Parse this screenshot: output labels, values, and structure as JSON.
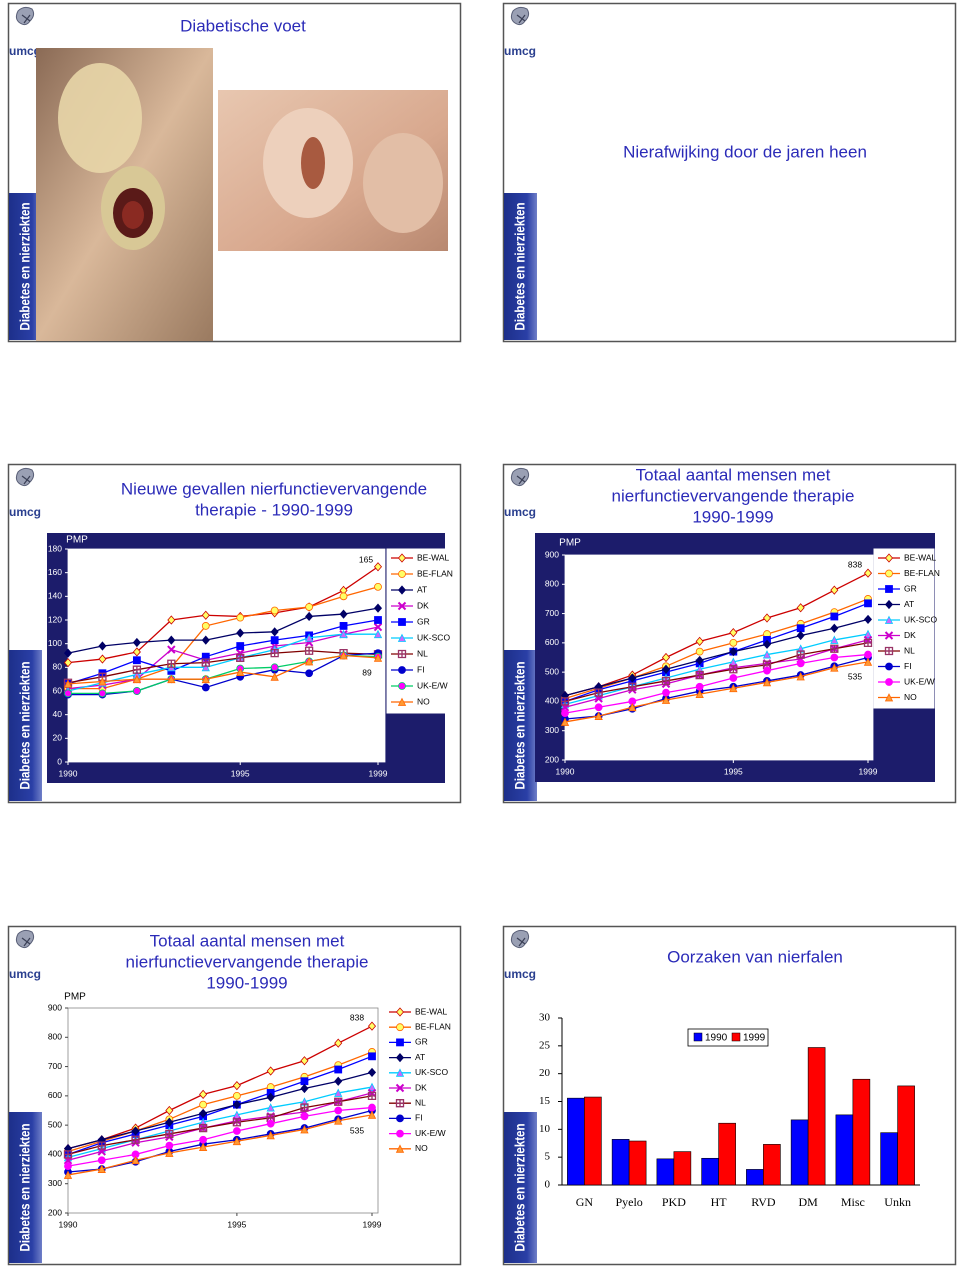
{
  "branding": {
    "logo": "umcg",
    "banner": "Diabetes en nierziekten"
  },
  "slides": [
    {
      "title": [
        "Diabetische voet"
      ]
    },
    {
      "title": [
        "Nierafwijking door de jaren heen"
      ]
    },
    {
      "title": [
        "Nieuwe gevallen nierfunctievervangende",
        "therapie - 1990-1999"
      ]
    },
    {
      "title": [
        "Totaal aantal mensen met",
        "nierfunctievervangende therapie",
        "1990-1999"
      ]
    },
    {
      "title": [
        "Totaal aantal mensen met",
        "nierfunctievervangende therapie",
        "1990-1999"
      ]
    },
    {
      "title": [
        "Oorzaken van nierfalen"
      ]
    }
  ],
  "chart_data": [
    {
      "type": "line",
      "y_label": "PMP",
      "frame_color": "#1c1c6b",
      "annotations": [
        "165",
        "89"
      ],
      "x": [
        1990,
        1991,
        1992,
        1993,
        1994,
        1995,
        1996,
        1997,
        1998,
        1999
      ],
      "xlim": [
        1990,
        1999
      ],
      "xticks": [
        1990,
        1995,
        1999
      ],
      "ylim": [
        0,
        180
      ],
      "yticks": [
        0,
        20,
        40,
        60,
        80,
        100,
        120,
        140,
        160,
        180
      ],
      "series": [
        {
          "name": "BE-WAL",
          "color": "#cc0000",
          "marker": "diamond",
          "marker_fill": "#ffff66",
          "values": [
            84,
            87,
            93,
            120,
            124,
            123,
            126,
            131,
            145,
            165
          ]
        },
        {
          "name": "BE-FLAN",
          "color": "#ff6600",
          "marker": "circle",
          "marker_fill": "#ffff66",
          "values": [
            62,
            62,
            70,
            80,
            115,
            122,
            128,
            131,
            140,
            148
          ]
        },
        {
          "name": "AT",
          "color": "#000066",
          "marker": "diamond",
          "marker_fill": "#000066",
          "values": [
            92,
            98,
            101,
            103,
            103,
            109,
            110,
            123,
            125,
            130
          ]
        },
        {
          "name": "DK",
          "color": "#cc00cc",
          "marker": "x",
          "marker_fill": "#cc00cc",
          "values": [
            62,
            65,
            70,
            95,
            86,
            92,
            98,
            101,
            108,
            114
          ]
        },
        {
          "name": "GR",
          "color": "#0000ff",
          "marker": "square",
          "marker_fill": "#0000ff",
          "values": [
            66,
            75,
            86,
            77,
            89,
            98,
            103,
            107,
            115,
            120
          ]
        },
        {
          "name": "UK-SCO",
          "color": "#00ccff",
          "marker": "triangle",
          "marker_fill": "#cc66ff",
          "values": [
            60,
            67,
            74,
            80,
            80,
            88,
            95,
            105,
            108,
            108
          ]
        },
        {
          "name": "NL",
          "color": "#800000",
          "marker": "hash",
          "marker_fill": "#993366",
          "values": [
            67,
            72,
            78,
            83,
            84,
            88,
            92,
            94,
            92,
            91
          ]
        },
        {
          "name": "FI",
          "color": "#0000cc",
          "marker": "circle",
          "marker_fill": "#0000cc",
          "values": [
            57,
            57,
            60,
            70,
            63,
            72,
            78,
            75,
            90,
            92
          ]
        },
        {
          "name": "UK-E/W",
          "color": "#00cc66",
          "marker": "circle",
          "marker_fill": "#ff00ff",
          "values": [
            58,
            58,
            60,
            70,
            70,
            79,
            80,
            85,
            90,
            89
          ]
        },
        {
          "name": "NO",
          "color": "#ff6600",
          "marker": "triangle",
          "marker_fill": "#ff9933",
          "values": [
            66,
            68,
            70,
            70,
            70,
            76,
            72,
            85,
            90,
            88
          ]
        }
      ]
    },
    {
      "type": "line",
      "y_label": "PMP",
      "frame_color": "#1c1c6b",
      "annotations": [
        "838",
        "535"
      ],
      "x": [
        1990,
        1991,
        1992,
        1993,
        1994,
        1995,
        1996,
        1997,
        1998,
        1999
      ],
      "xlim": [
        1990,
        1999
      ],
      "xticks": [
        1990,
        1995,
        1999
      ],
      "ylim": [
        200,
        900
      ],
      "yticks": [
        200,
        300,
        400,
        500,
        600,
        700,
        800,
        900
      ],
      "series": [
        {
          "name": "BE-WAL",
          "color": "#cc0000",
          "marker": "diamond",
          "marker_fill": "#ffff66",
          "values": [
            420,
            450,
            490,
            550,
            605,
            635,
            685,
            720,
            780,
            838
          ]
        },
        {
          "name": "BE-FLAN",
          "color": "#ff6600",
          "marker": "circle",
          "marker_fill": "#ffff66",
          "values": [
            410,
            445,
            480,
            520,
            570,
            600,
            630,
            665,
            705,
            750
          ]
        },
        {
          "name": "GR",
          "color": "#0000ff",
          "marker": "square",
          "marker_fill": "#0000ff",
          "values": [
            400,
            440,
            470,
            500,
            530,
            570,
            610,
            650,
            690,
            735
          ]
        },
        {
          "name": "AT",
          "color": "#000066",
          "marker": "diamond",
          "marker_fill": "#000066",
          "values": [
            420,
            450,
            480,
            510,
            540,
            570,
            595,
            625,
            650,
            680
          ]
        },
        {
          "name": "UK-SCO",
          "color": "#00ccff",
          "marker": "triangle",
          "marker_fill": "#cc66ff",
          "values": [
            390,
            420,
            450,
            480,
            510,
            535,
            560,
            580,
            610,
            630
          ]
        },
        {
          "name": "DK",
          "color": "#cc00cc",
          "marker": "x",
          "marker_fill": "#cc00cc",
          "values": [
            380,
            410,
            440,
            460,
            490,
            515,
            530,
            545,
            580,
            610
          ]
        },
        {
          "name": "NL",
          "color": "#800000",
          "marker": "hash",
          "marker_fill": "#993366",
          "values": [
            400,
            430,
            450,
            470,
            490,
            510,
            525,
            560,
            580,
            600
          ]
        },
        {
          "name": "FI",
          "color": "#0000cc",
          "marker": "circle",
          "marker_fill": "#0000cc",
          "values": [
            340,
            350,
            375,
            410,
            435,
            450,
            470,
            490,
            520,
            550
          ]
        },
        {
          "name": "UK-E/W",
          "color": "#ff00ff",
          "marker": "circle",
          "marker_fill": "#ff00ff",
          "values": [
            360,
            380,
            400,
            430,
            450,
            480,
            505,
            530,
            550,
            560
          ]
        },
        {
          "name": "NO",
          "color": "#ff6600",
          "marker": "triangle",
          "marker_fill": "#ff9933",
          "values": [
            330,
            350,
            380,
            405,
            425,
            445,
            465,
            485,
            515,
            535
          ]
        }
      ]
    },
    {
      "type": "line",
      "y_label": "PMP",
      "annotations": [
        "838",
        "535"
      ],
      "x": [
        1990,
        1991,
        1992,
        1993,
        1994,
        1995,
        1996,
        1997,
        1998,
        1999
      ],
      "xlim": [
        1990,
        1999
      ],
      "xticks": [
        1990,
        1995,
        1999
      ],
      "ylim": [
        200,
        900
      ],
      "yticks": [
        200,
        300,
        400,
        500,
        600,
        700,
        800,
        900
      ],
      "series": [
        {
          "name": "BE-WAL",
          "color": "#cc0000",
          "marker": "diamond",
          "marker_fill": "#ffff66",
          "values": [
            420,
            450,
            490,
            550,
            605,
            635,
            685,
            720,
            780,
            838
          ]
        },
        {
          "name": "BE-FLAN",
          "color": "#ff6600",
          "marker": "circle",
          "marker_fill": "#ffff66",
          "values": [
            410,
            445,
            480,
            520,
            570,
            600,
            630,
            665,
            705,
            750
          ]
        },
        {
          "name": "GR",
          "color": "#0000ff",
          "marker": "square",
          "marker_fill": "#0000ff",
          "values": [
            400,
            440,
            470,
            500,
            530,
            570,
            610,
            650,
            690,
            735
          ]
        },
        {
          "name": "AT",
          "color": "#000066",
          "marker": "diamond",
          "marker_fill": "#000066",
          "values": [
            420,
            450,
            480,
            510,
            540,
            570,
            595,
            625,
            650,
            680
          ]
        },
        {
          "name": "UK-SCO",
          "color": "#00ccff",
          "marker": "triangle",
          "marker_fill": "#cc66ff",
          "values": [
            390,
            420,
            450,
            480,
            510,
            535,
            560,
            580,
            610,
            630
          ]
        },
        {
          "name": "DK",
          "color": "#cc00cc",
          "marker": "x",
          "marker_fill": "#cc00cc",
          "values": [
            380,
            410,
            440,
            460,
            490,
            515,
            530,
            545,
            580,
            610
          ]
        },
        {
          "name": "NL",
          "color": "#800000",
          "marker": "hash",
          "marker_fill": "#993366",
          "values": [
            400,
            430,
            450,
            470,
            490,
            510,
            525,
            560,
            580,
            600
          ]
        },
        {
          "name": "FI",
          "color": "#0000cc",
          "marker": "circle",
          "marker_fill": "#0000cc",
          "values": [
            340,
            350,
            375,
            410,
            435,
            450,
            470,
            490,
            520,
            550
          ]
        },
        {
          "name": "UK-E/W",
          "color": "#ff00ff",
          "marker": "circle",
          "marker_fill": "#ff00ff",
          "values": [
            360,
            380,
            400,
            430,
            450,
            480,
            505,
            530,
            550,
            560
          ]
        },
        {
          "name": "NO",
          "color": "#ff6600",
          "marker": "triangle",
          "marker_fill": "#ff9933",
          "values": [
            330,
            350,
            380,
            405,
            425,
            445,
            465,
            485,
            515,
            535
          ]
        }
      ]
    },
    {
      "type": "bar",
      "categories": [
        "GN",
        "Pyelo",
        "PKD",
        "HT",
        "RVD",
        "DM",
        "Misc",
        "Unkn"
      ],
      "ylim": [
        0,
        30
      ],
      "yticks": [
        0,
        5,
        10,
        15,
        20,
        25,
        30
      ],
      "series": [
        {
          "name": "1990",
          "color": "#0000ff",
          "values": [
            15.6,
            8.2,
            4.7,
            4.8,
            2.8,
            11.7,
            12.6,
            9.4
          ]
        },
        {
          "name": "1999",
          "color": "#ff0000",
          "values": [
            15.8,
            7.9,
            6.0,
            11.1,
            7.3,
            24.7,
            19.0,
            17.8
          ]
        }
      ]
    }
  ]
}
